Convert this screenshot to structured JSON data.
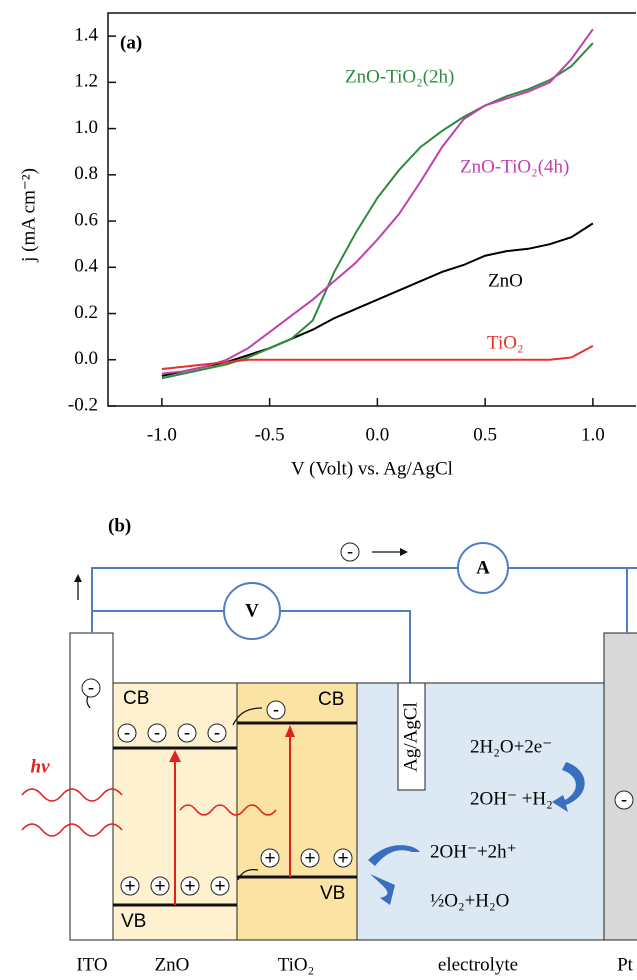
{
  "chart_data": {
    "type": "line",
    "title": "(a)",
    "x_label": "V (Volt) vs. Ag/AgCl",
    "y_label": "j (mA cm⁻²)",
    "xlim": [
      -1.25,
      1.2
    ],
    "ylim": [
      -0.2,
      1.5
    ],
    "xticks": [
      {
        "value": -1,
        "label": "-1.0"
      },
      -0.5,
      {
        "value": 0,
        "label": "0.0"
      },
      0.5,
      {
        "value": 1,
        "label": "1.0"
      }
    ],
    "yticks": [
      -0.2,
      {
        "value": 0,
        "label": "0.0"
      },
      0.2,
      0.4,
      0.6,
      0.8,
      {
        "value": 1,
        "label": "1.0"
      },
      1.2,
      1.4
    ],
    "x": [
      -1.0,
      -0.9,
      -0.8,
      -0.7,
      -0.6,
      -0.5,
      -0.4,
      -0.3,
      -0.2,
      -0.1,
      0.0,
      0.1,
      0.2,
      0.3,
      0.4,
      0.5,
      0.6,
      0.7,
      0.8,
      0.9,
      1.0
    ],
    "series": [
      {
        "name": "ZnO",
        "color": "#000000",
        "values": [
          -0.07,
          -0.05,
          -0.03,
          -0.01,
          0.02,
          0.05,
          0.09,
          0.13,
          0.18,
          0.22,
          0.26,
          0.3,
          0.34,
          0.38,
          0.41,
          0.45,
          0.47,
          0.48,
          0.5,
          0.53,
          0.59
        ]
      },
      {
        "name": "ZnO-TiO₂(2h)",
        "color": "#2e8b3e",
        "values": [
          -0.08,
          -0.06,
          -0.04,
          -0.02,
          0.01,
          0.05,
          0.09,
          0.17,
          0.38,
          0.55,
          0.7,
          0.82,
          0.92,
          0.99,
          1.05,
          1.1,
          1.14,
          1.17,
          1.21,
          1.27,
          1.37
        ]
      },
      {
        "name": "ZnO-TiO₂(4h)",
        "color": "#c040b0",
        "values": [
          -0.06,
          -0.05,
          -0.03,
          0.0,
          0.05,
          0.12,
          0.19,
          0.26,
          0.34,
          0.42,
          0.52,
          0.63,
          0.77,
          0.92,
          1.04,
          1.1,
          1.13,
          1.16,
          1.2,
          1.3,
          1.43
        ]
      },
      {
        "name": "TiO₂",
        "color": "#e8302a",
        "values": [
          -0.04,
          -0.03,
          -0.02,
          -0.01,
          0.0,
          0.0,
          0.0,
          0.0,
          0.0,
          0.0,
          0.0,
          0.0,
          0.0,
          0.0,
          0.0,
          0.0,
          0.0,
          0.0,
          0.0,
          0.01,
          0.06
        ]
      }
    ]
  },
  "diagram": {
    "title": "(b)",
    "ammeter": "A",
    "voltmeter": "V",
    "reference": "Ag/AgCl",
    "light": "hv",
    "layers": [
      "ITO",
      "ZnO",
      "TiO₂",
      "electrolyte",
      "Pt"
    ],
    "bands": {
      "cb": "CB",
      "vb": "VB"
    },
    "charges": {
      "electron": "-",
      "hole": "+"
    },
    "reactions": [
      "2H₂O+2e⁻",
      "2OH⁻ +H₂",
      "2OH⁻+2h⁺",
      "½O₂+H₂O"
    ]
  }
}
